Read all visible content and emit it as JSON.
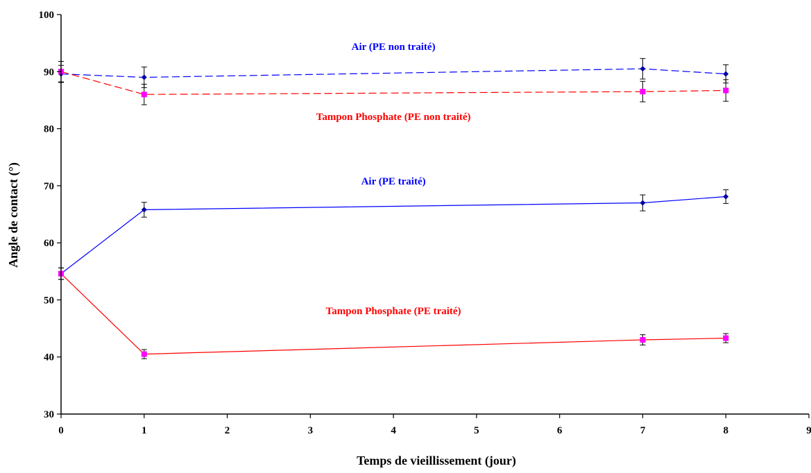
{
  "chart_data": {
    "type": "line",
    "title": "",
    "xlabel": "Temps de vieillissement (jour)",
    "ylabel": "Angle de contact (°)",
    "xlim": [
      0,
      9
    ],
    "ylim": [
      30,
      100
    ],
    "xticks": [
      "0",
      "1",
      "2",
      "3",
      "4",
      "5",
      "6",
      "7",
      "8",
      "9"
    ],
    "yticks": [
      "30",
      "40",
      "50",
      "60",
      "70",
      "80",
      "90",
      "100"
    ],
    "grid": false,
    "legend": "none",
    "x": [
      0,
      1,
      7,
      8
    ],
    "series": [
      {
        "name": "Air (PE non traité)",
        "values": [
          89.6,
          89.0,
          90.5,
          89.6
        ],
        "error": [
          1.5,
          1.8,
          1.8,
          1.6
        ],
        "color": "#0000ff",
        "marker_color": "#0000a0",
        "marker": "diamond",
        "line_style": "dashed"
      },
      {
        "name": "Tampon Phosphate (PE non traité)",
        "values": [
          90.0,
          86.0,
          86.5,
          86.7
        ],
        "error": [
          1.8,
          1.8,
          1.8,
          1.9
        ],
        "color": "#ff0000",
        "marker_color": "#ff00ff",
        "marker": "square",
        "line_style": "dashed"
      },
      {
        "name": "Air (PE traité)",
        "values": [
          54.6,
          65.8,
          67.0,
          68.1
        ],
        "error": [
          1.0,
          1.3,
          1.4,
          1.2
        ],
        "color": "#0000ff",
        "marker_color": "#0000a0",
        "marker": "diamond",
        "line_style": "solid"
      },
      {
        "name": "Tampon Phosphate (PE traité)",
        "values": [
          54.6,
          40.5,
          43.0,
          43.3
        ],
        "error": [
          1.0,
          0.8,
          0.9,
          0.8
        ],
        "color": "#ff0000",
        "marker_color": "#ff00ff",
        "marker": "square",
        "line_style": "solid"
      }
    ],
    "annotations": [
      {
        "text": "Air (PE non traité)",
        "x": 4.0,
        "y": 93.8,
        "color": "#0000ff"
      },
      {
        "text": "Tampon Phosphate (PE non traité)",
        "x": 4.0,
        "y": 81.5,
        "color": "#ff0000"
      },
      {
        "text": "Air (PE traité)",
        "x": 4.0,
        "y": 70.2,
        "color": "#0000ff"
      },
      {
        "text": "Tampon Phosphate (PE traité)",
        "x": 4.0,
        "y": 47.5,
        "color": "#ff0000"
      }
    ]
  }
}
